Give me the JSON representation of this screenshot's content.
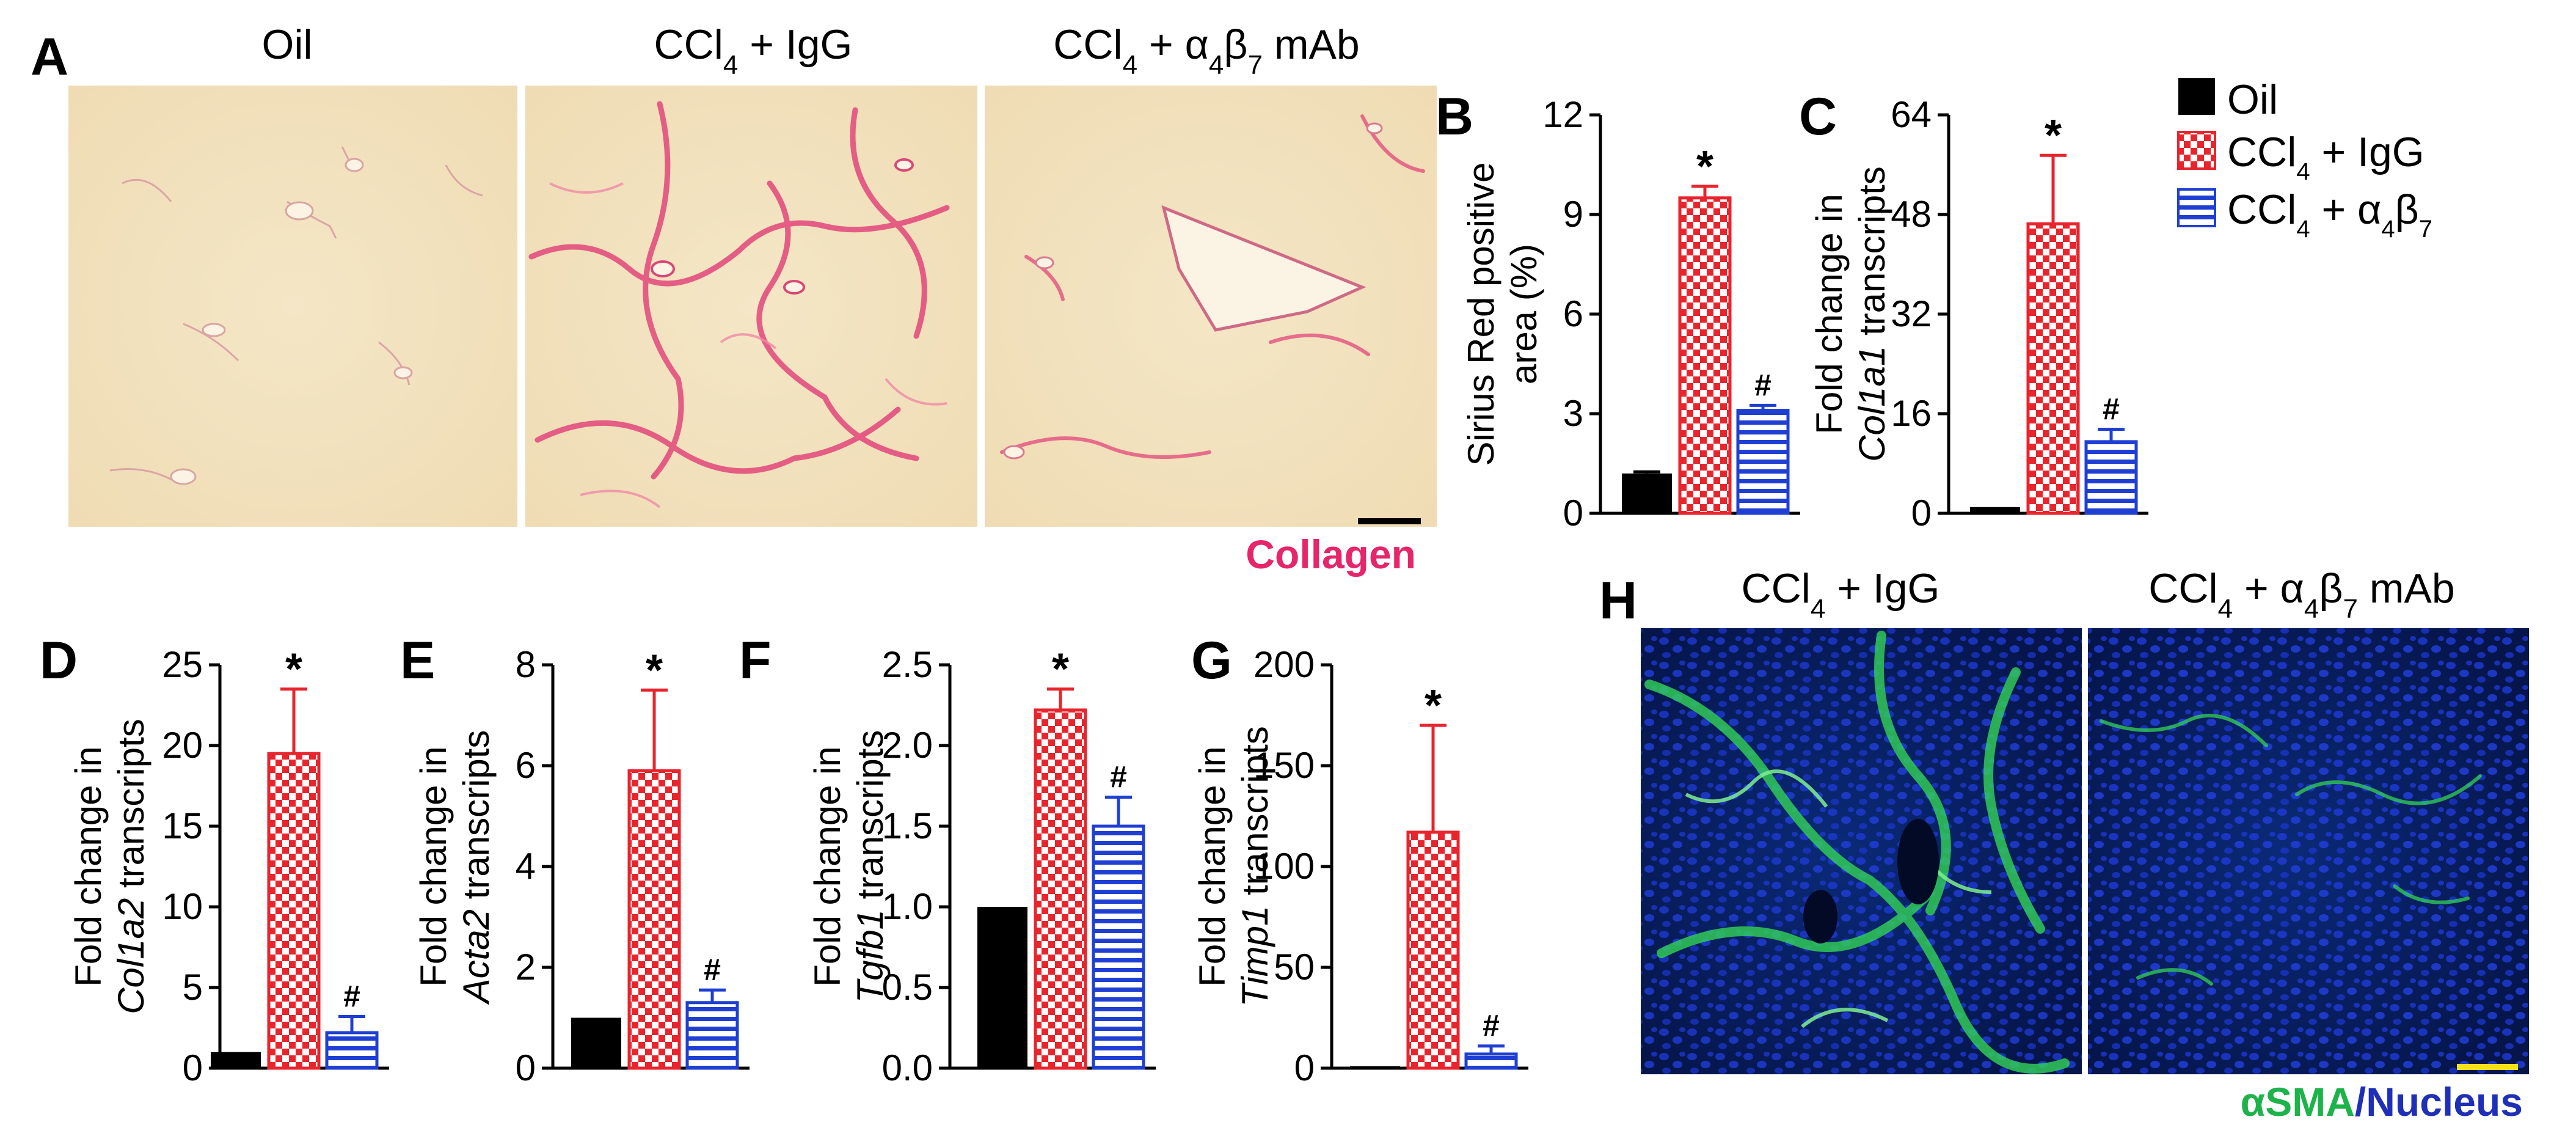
{
  "colors": {
    "oil": "#000000",
    "igg": "#e8242c",
    "ab7": "#1f3fd2",
    "collagen": "#e6256b",
    "asma": "#1db34a",
    "nucleus": "#1f2fb8",
    "scalebar_black": "#000000",
    "scalebar_yellow": "#f5e11a"
  },
  "panel_a": {
    "letter": "A",
    "images": [
      {
        "title": "Oil"
      },
      {
        "title_html": "CCl<sub>4</sub> + IgG",
        "title_parts": [
          "CCl",
          "4",
          " + IgG"
        ]
      },
      {
        "title_parts": [
          "CCl",
          "4",
          " + α",
          "4",
          "β",
          "7",
          " mAb"
        ]
      }
    ],
    "stain_label": "Collagen"
  },
  "panel_h": {
    "letter": "H",
    "images": [
      {
        "title_parts": [
          "CCl",
          "4",
          " + IgG"
        ]
      },
      {
        "title_parts": [
          "CCl",
          "4",
          " + α",
          "4",
          "β",
          "7",
          " mAb"
        ]
      }
    ],
    "stain_label_a": "αSMA",
    "stain_label_sep": "/",
    "stain_label_b": "Nucleus"
  },
  "legend": {
    "items": [
      {
        "label_parts": [
          "Oil"
        ],
        "pattern": "solid"
      },
      {
        "label_parts": [
          "CCl",
          "4",
          " + IgG"
        ],
        "pattern": "checker"
      },
      {
        "label_parts": [
          "CCl",
          "4",
          " + α",
          "4",
          "β",
          "7"
        ],
        "pattern": "stripes"
      }
    ]
  },
  "chart_data": [
    {
      "letter": "B",
      "type": "bar",
      "ylabel_lines": [
        "Sirius Red positive",
        "area (%)"
      ],
      "categories": [
        "Oil",
        "CCl4 + IgG",
        "CCl4 + α4β7"
      ],
      "values": [
        1.2,
        9.5,
        3.1
      ],
      "errors": [
        0.05,
        0.35,
        0.15
      ],
      "annotations": [
        "",
        "*",
        "#"
      ],
      "ylim": [
        0,
        12
      ],
      "yticks": [
        0,
        3,
        6,
        9,
        12
      ],
      "ytick_labels": [
        "0",
        "3",
        "6",
        "9",
        "12"
      ]
    },
    {
      "letter": "C",
      "type": "bar",
      "ylabel_lines": [
        "Fold change in",
        "Col1a1 transcripts"
      ],
      "ylabel_italic": "Col1a1",
      "categories": [
        "Oil",
        "CCl4 + IgG",
        "CCl4 + α4β7"
      ],
      "values": [
        1,
        46.5,
        11.5
      ],
      "errors": [
        0,
        11,
        2
      ],
      "annotations": [
        "",
        "*",
        "#"
      ],
      "ylim": [
        0,
        64
      ],
      "yticks": [
        0,
        16,
        32,
        48,
        64
      ],
      "ytick_labels": [
        "0",
        "16",
        "32",
        "48",
        "64"
      ]
    },
    {
      "letter": "D",
      "type": "bar",
      "ylabel_lines": [
        "Fold change in",
        "Col1a2 transcripts"
      ],
      "ylabel_italic": "Col1a2",
      "categories": [
        "Oil",
        "CCl4 + IgG",
        "CCl4 + α4β7"
      ],
      "values": [
        1,
        19.5,
        2.2
      ],
      "errors": [
        0,
        4,
        1
      ],
      "annotations": [
        "",
        "*",
        "#"
      ],
      "ylim": [
        0,
        25
      ],
      "yticks": [
        0,
        5,
        10,
        15,
        20,
        25
      ],
      "ytick_labels": [
        "0",
        "5",
        "10",
        "15",
        "20",
        "25"
      ]
    },
    {
      "letter": "E",
      "type": "bar",
      "ylabel_lines": [
        "Fold change in",
        "Acta2 transcripts"
      ],
      "ylabel_italic": "Acta2",
      "categories": [
        "Oil",
        "CCl4 + IgG",
        "CCl4 + α4β7"
      ],
      "values": [
        1,
        5.9,
        1.3
      ],
      "errors": [
        0,
        1.6,
        0.25
      ],
      "annotations": [
        "",
        "*",
        "#"
      ],
      "ylim": [
        0,
        8
      ],
      "yticks": [
        0,
        2,
        4,
        6,
        8
      ],
      "ytick_labels": [
        "0",
        "2",
        "4",
        "6",
        "8"
      ]
    },
    {
      "letter": "F",
      "type": "bar",
      "ylabel_lines": [
        "Fold change in",
        "Tgfb1 transcripts"
      ],
      "ylabel_italic": "Tgfb1",
      "categories": [
        "Oil",
        "CCl4 + IgG",
        "CCl4 + α4β7"
      ],
      "values": [
        1,
        2.22,
        1.5
      ],
      "errors": [
        0,
        0.13,
        0.18
      ],
      "annotations": [
        "",
        "*",
        "#"
      ],
      "ylim": [
        0,
        2.5
      ],
      "yticks": [
        0,
        0.5,
        1,
        1.5,
        2,
        2.5
      ],
      "ytick_labels": [
        "0.0",
        "0.5",
        "1.0",
        "1.5",
        "2.0",
        "2.5"
      ]
    },
    {
      "letter": "G",
      "type": "bar",
      "ylabel_lines": [
        "Fold change in",
        "Timp1 transcripts"
      ],
      "ylabel_italic": "Timp1",
      "categories": [
        "Oil",
        "CCl4 + IgG",
        "CCl4 + α4β7"
      ],
      "values": [
        1,
        117,
        7
      ],
      "errors": [
        0,
        53,
        4
      ],
      "annotations": [
        "",
        "*",
        "#"
      ],
      "ylim": [
        0,
        200
      ],
      "yticks": [
        0,
        50,
        100,
        150,
        200
      ],
      "ytick_labels": [
        "0",
        "50",
        "100",
        "150",
        "200"
      ]
    }
  ]
}
